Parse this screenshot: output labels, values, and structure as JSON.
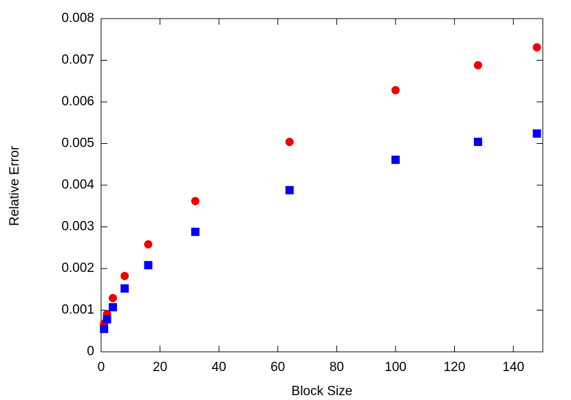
{
  "chart_data": {
    "type": "scatter",
    "x_label": "Block Size",
    "y_label": "Relative Error",
    "series": [
      {
        "color": "#ee0000",
        "marker": "circle",
        "x": [
          1,
          2,
          4,
          8,
          16,
          32,
          64,
          100,
          128,
          148
        ],
        "values": [
          0.00068,
          0.00091,
          0.00129,
          0.00182,
          0.00258,
          0.00362,
          0.00504,
          0.00628,
          0.00688,
          0.00731
        ]
      },
      {
        "color": "#0000ee",
        "marker": "square",
        "x": [
          1,
          2,
          4,
          8,
          16,
          32,
          64,
          100,
          128,
          148
        ],
        "values": [
          0.00055,
          0.00078,
          0.00107,
          0.00152,
          0.00208,
          0.00288,
          0.00388,
          0.00461,
          0.00504,
          0.00524
        ]
      }
    ],
    "xlim": [
      0,
      150
    ],
    "xticks": [
      0,
      20,
      40,
      60,
      80,
      100,
      120,
      140
    ],
    "ylim": [
      0,
      0.008
    ],
    "yticks": [
      0,
      0.001,
      0.002,
      0.003,
      0.004,
      0.005,
      0.006,
      0.007,
      0.008
    ]
  }
}
